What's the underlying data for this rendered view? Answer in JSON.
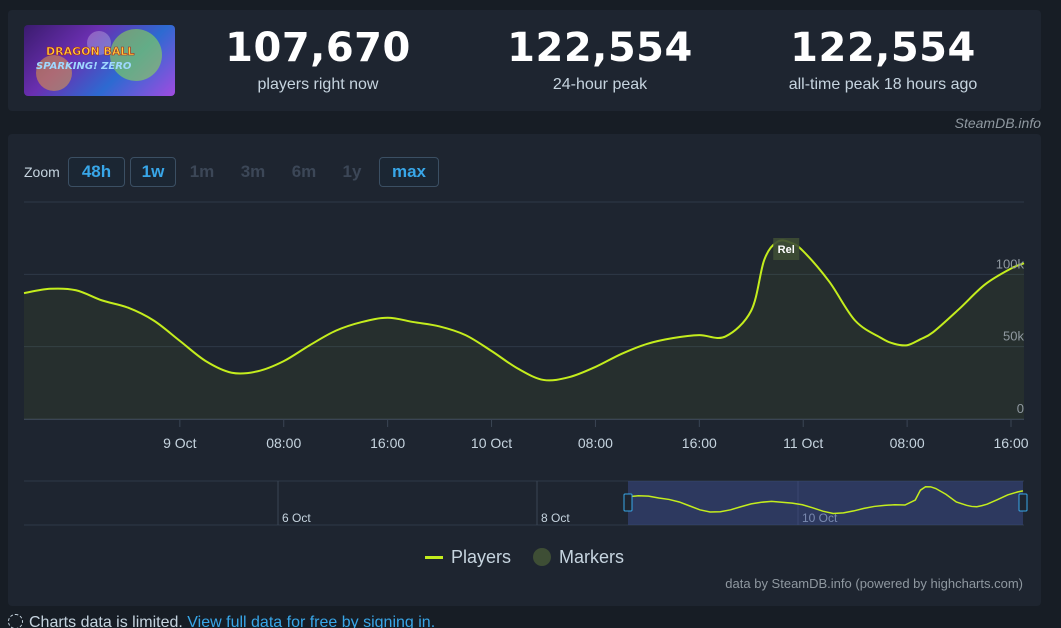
{
  "game": {
    "cover_icon": "game-cover-art",
    "cover_text_line1": "DRAGON BALL",
    "cover_text_line2": "SPARKING! ZERO"
  },
  "stats": [
    {
      "value": "107,670",
      "label": "players right now"
    },
    {
      "value": "122,554",
      "label": "24-hour peak"
    },
    {
      "value": "122,554",
      "label": "all-time peak 18 hours ago"
    }
  ],
  "credit_top": "SteamDB.info",
  "zoom": {
    "label": "Zoom",
    "options": [
      {
        "label": "48h",
        "active": true
      },
      {
        "label": "1w",
        "active": true
      },
      {
        "label": "1m",
        "active": false
      },
      {
        "label": "3m",
        "active": false
      },
      {
        "label": "6m",
        "active": false
      },
      {
        "label": "1y",
        "active": false
      },
      {
        "label": "max",
        "active": true
      }
    ]
  },
  "chart_data": {
    "type": "line",
    "series": [
      {
        "name": "Players",
        "x": [
          "2024-10-08 12:00",
          "2024-10-08 14:00",
          "2024-10-08 16:00",
          "2024-10-08 18:00",
          "2024-10-08 20:00",
          "2024-10-08 22:00",
          "2024-10-09 00:00",
          "2024-10-09 02:00",
          "2024-10-09 04:00",
          "2024-10-09 06:00",
          "2024-10-09 08:00",
          "2024-10-09 10:00",
          "2024-10-09 12:00",
          "2024-10-09 14:00",
          "2024-10-09 16:00",
          "2024-10-09 18:00",
          "2024-10-09 20:00",
          "2024-10-09 22:00",
          "2024-10-10 00:00",
          "2024-10-10 02:00",
          "2024-10-10 04:00",
          "2024-10-10 06:00",
          "2024-10-10 08:00",
          "2024-10-10 10:00",
          "2024-10-10 12:00",
          "2024-10-10 14:00",
          "2024-10-10 16:00",
          "2024-10-10 18:00",
          "2024-10-10 20:00",
          "2024-10-10 21:00",
          "2024-10-10 22:00",
          "2024-10-10 23:00",
          "2024-10-11 00:00",
          "2024-10-11 02:00",
          "2024-10-11 04:00",
          "2024-10-11 06:00",
          "2024-10-11 07:00",
          "2024-10-11 08:00",
          "2024-10-11 09:00",
          "2024-10-11 10:00",
          "2024-10-11 12:00",
          "2024-10-11 14:00",
          "2024-10-11 16:00",
          "2024-10-11 17:00"
        ],
        "values": [
          87000,
          90000,
          89000,
          82000,
          77000,
          68000,
          54000,
          40000,
          32000,
          33000,
          40000,
          51000,
          61000,
          67000,
          70000,
          67000,
          64000,
          58000,
          47000,
          35000,
          27000,
          29000,
          36000,
          45000,
          52000,
          56000,
          58000,
          57000,
          75000,
          110000,
          122500,
          122000,
          116000,
          95000,
          68000,
          56000,
          52000,
          51000,
          55000,
          60000,
          76000,
          93000,
          104000,
          107670
        ]
      }
    ],
    "y_ticks": [
      "0",
      "50k",
      "100k"
    ],
    "ylim": [
      0,
      150000
    ],
    "x_ticks": [
      "9 Oct",
      "08:00",
      "16:00",
      "10 Oct",
      "08:00",
      "16:00",
      "11 Oct",
      "08:00",
      "16:00"
    ],
    "marker": {
      "label": "Rel",
      "at": "2024-10-10 22:00"
    },
    "navigator_ticks": [
      "6 Oct",
      "8 Oct",
      "10 Oct"
    ],
    "grid": true,
    "legend": {
      "placement": "bottom-center",
      "items": [
        "Players",
        "Markers"
      ]
    },
    "colors": {
      "line": "#c4ed1d",
      "marker": "#3e4e35",
      "navigator_window": "#3b4a86"
    }
  },
  "credit_bottom": "data by SteamDB.info (powered by highcharts.com)",
  "notice": {
    "text": "Charts data is limited.",
    "link": "View full data for free by signing in.",
    "icon": "dashed-circle-icon"
  }
}
